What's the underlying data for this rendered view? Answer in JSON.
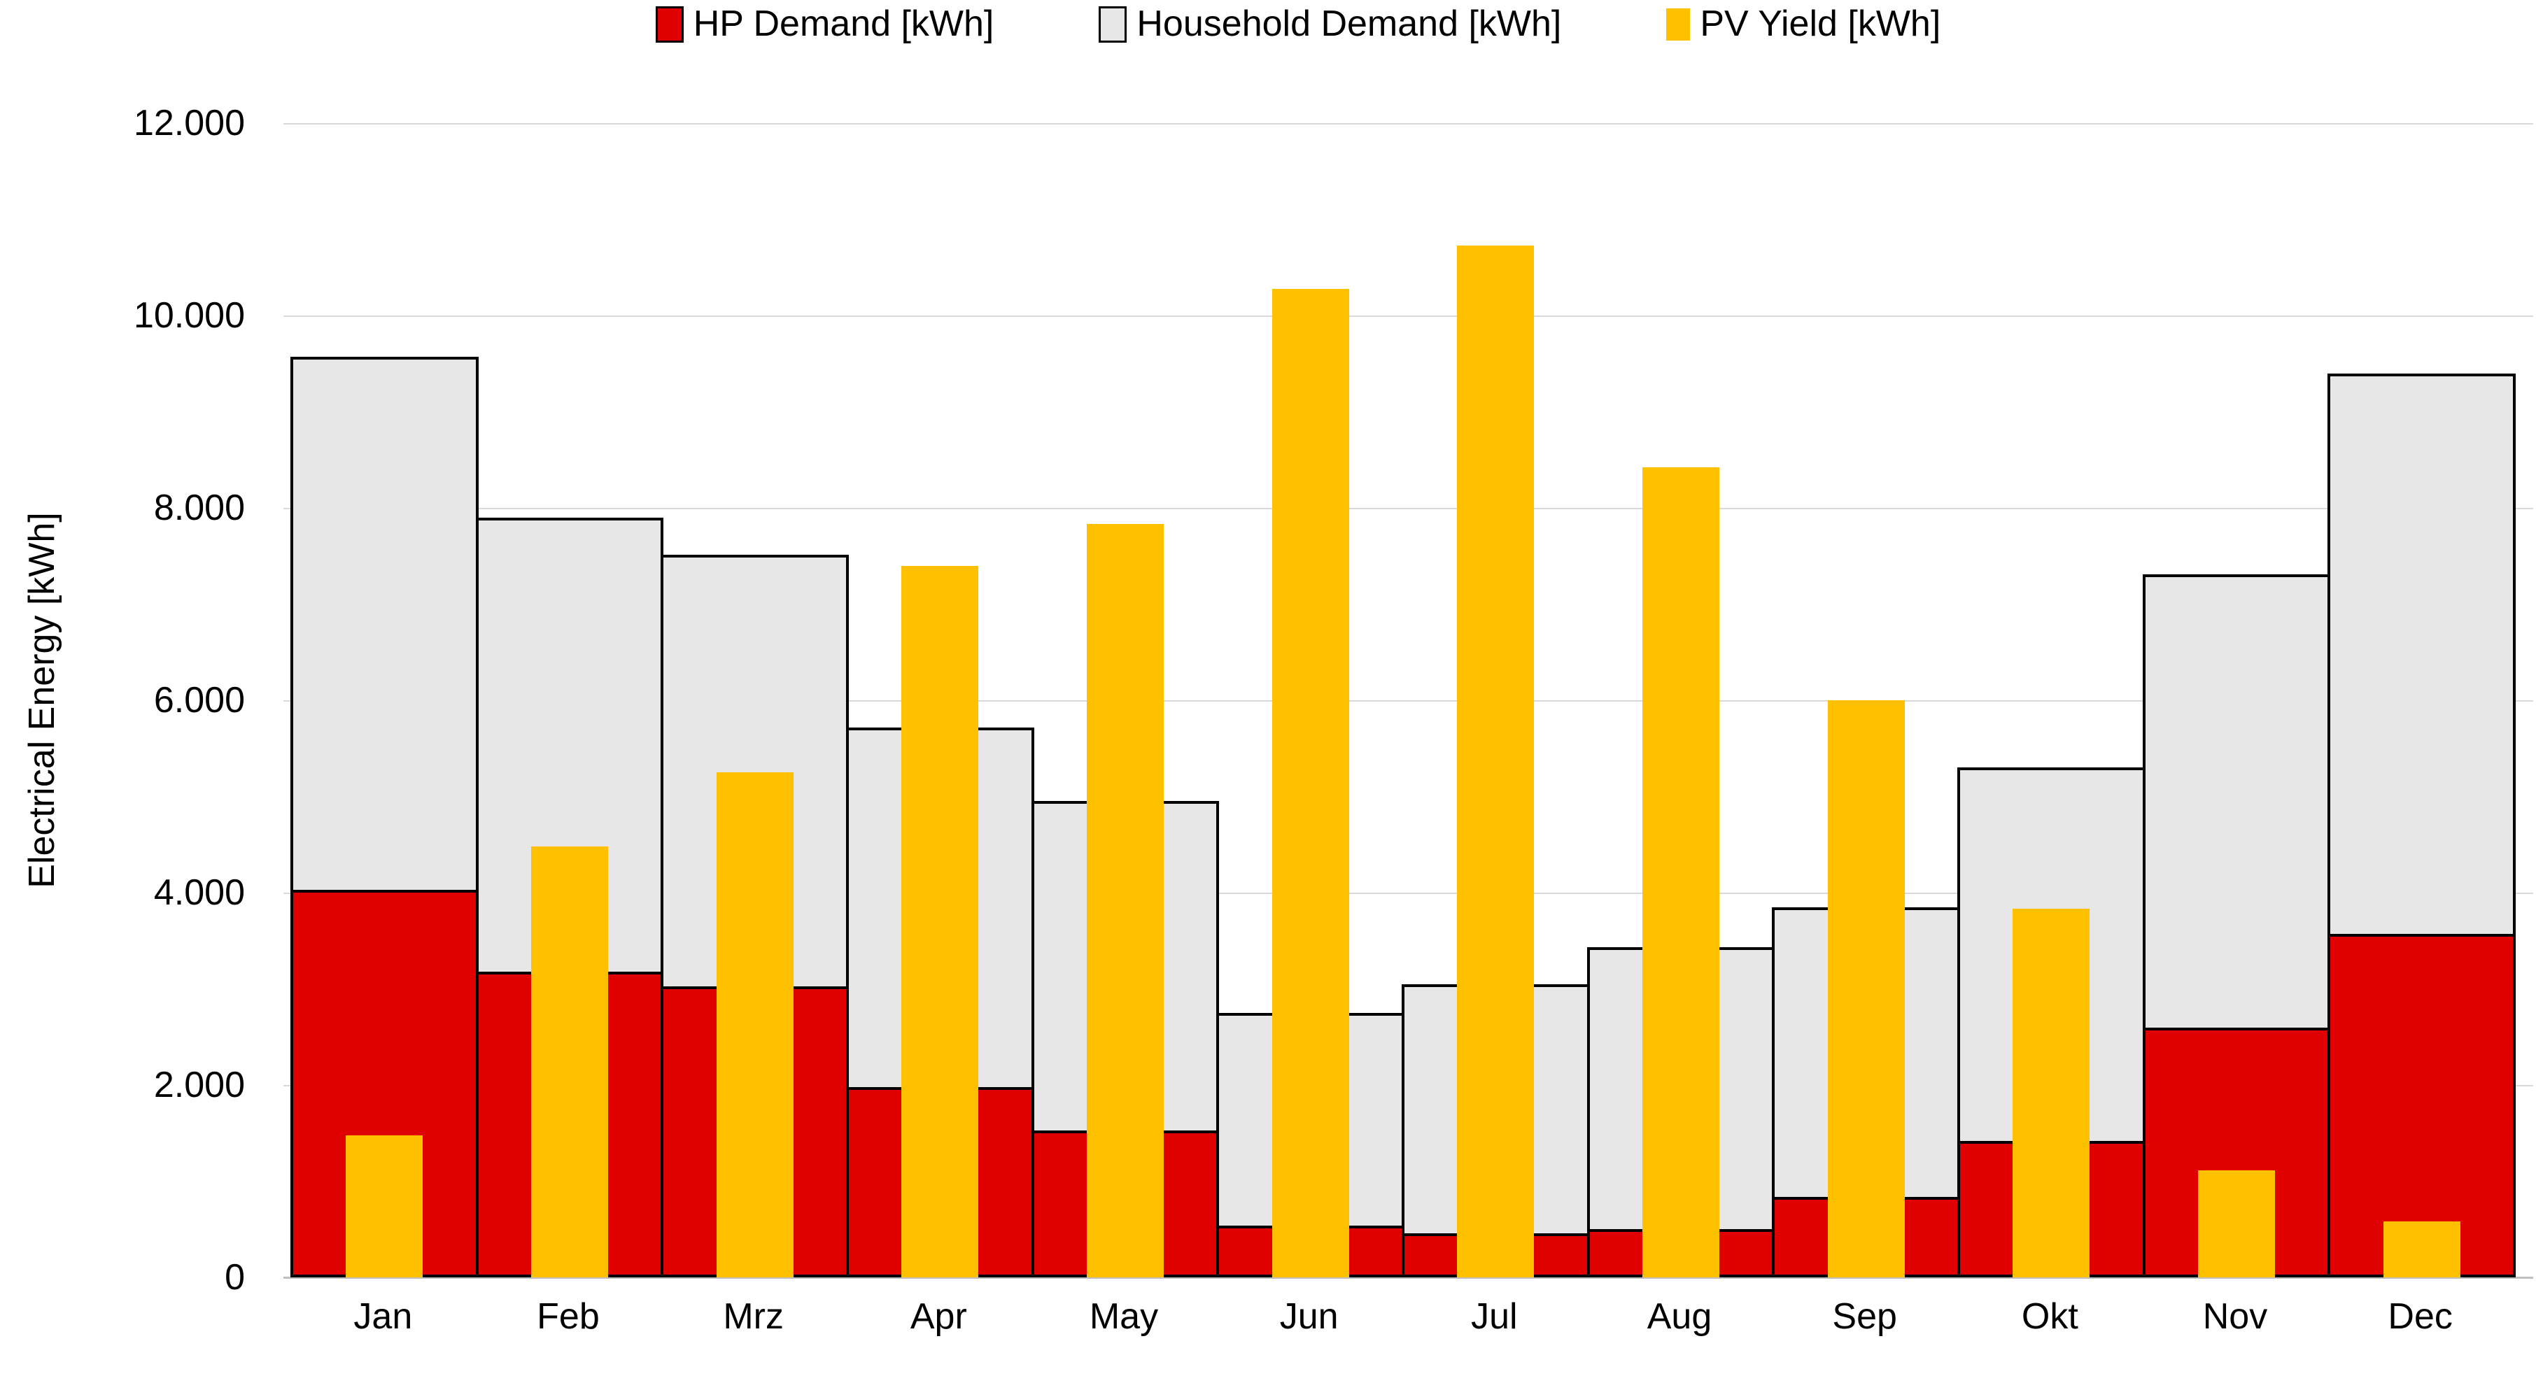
{
  "chart_data": {
    "type": "bar",
    "subtype": "stacked-columns-with-overlay-column",
    "title": "",
    "xlabel": "",
    "ylabel": "Electrical Energy [kWh]",
    "ylim": [
      0,
      12000
    ],
    "ytick_step": 2000,
    "yticks": [
      0,
      2000,
      4000,
      6000,
      8000,
      10000,
      12000
    ],
    "ytick_labels": [
      "0",
      "2.000",
      "4.000",
      "6.000",
      "8.000",
      "10.000",
      "12.000"
    ],
    "grid": true,
    "legend_position": "top-center",
    "categories": [
      "Jan",
      "Feb",
      "Mrz",
      "Apr",
      "May",
      "Jun",
      "Jul",
      "Aug",
      "Sep",
      "Okt",
      "Nov",
      "Dec"
    ],
    "series": [
      {
        "name": "HP Demand [kWh]",
        "role": "stacked-bottom",
        "color": "#e00000",
        "outline": "#000000",
        "values": [
          4000,
          3150,
          3000,
          1950,
          1500,
          510,
          430,
          470,
          810,
          1390,
          2570,
          3540
        ]
      },
      {
        "name": "Household Demand [kWh]",
        "role": "stacked-top",
        "color": "#e7e7e7",
        "outline": "#000000",
        "values": [
          5570,
          4750,
          4510,
          3770,
          3450,
          2240,
          2620,
          2960,
          3040,
          3910,
          4740,
          5860
        ]
      },
      {
        "name": "PV Yield [kWh]",
        "role": "overlay",
        "color": "#ffc000",
        "outline": null,
        "values": [
          1480,
          4480,
          5250,
          7400,
          7830,
          10280,
          10730,
          8420,
          6000,
          3830,
          1110,
          580
        ]
      }
    ],
    "stacked_totals": [
      9570,
      7900,
      7510,
      5720,
      4950,
      2750,
      3050,
      3430,
      3850,
      5300,
      7310,
      9400
    ],
    "colors": {
      "gridline": "#d9d9d9",
      "axis_line": "#bfbfbf",
      "text": "#000000",
      "background": "#ffffff"
    }
  }
}
